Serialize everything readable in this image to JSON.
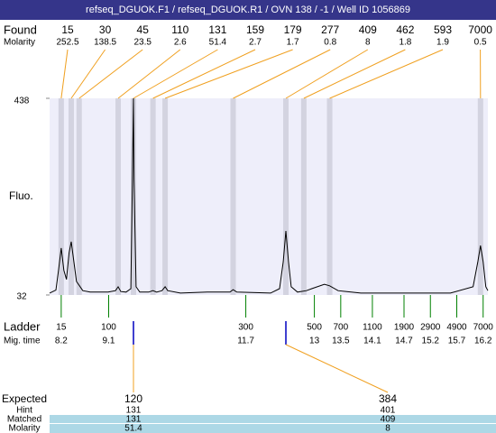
{
  "chart_data": {
    "type": "line",
    "title": "refseq_DGUOK.F1 / refseq_DGUOK.R1 / OVN 138 / -1 / Well ID 1056869",
    "y_label": "Fluo.",
    "xlim": [
      7.98,
      16.29
    ],
    "ylim": [
      32,
      438
    ],
    "yticks": [
      32,
      438
    ],
    "series": [
      {
        "color": "#000000",
        "x": [
          7.98,
          8.1,
          8.15,
          8.2,
          8.25,
          8.3,
          8.35,
          8.39,
          8.44,
          8.49,
          8.54,
          8.61,
          8.75,
          9.09,
          9.23,
          9.28,
          9.33,
          9.43,
          9.52,
          9.55,
          9.57,
          9.58,
          9.62,
          9.69,
          9.86,
          9.94,
          10.01,
          10.11,
          10.17,
          10.22,
          10.46,
          10.97,
          11.4,
          11.46,
          11.53,
          12.17,
          12.34,
          12.41,
          12.46,
          12.51,
          12.56,
          12.68,
          12.85,
          12.95,
          13.19,
          13.29,
          13.45,
          13.88,
          14.73,
          15.58,
          16.01,
          16.1,
          16.15,
          16.2,
          16.25,
          16.29
        ],
        "values": [
          36,
          42,
          83,
          129,
          83,
          64,
          119,
          142,
          101,
          60,
          52,
          41,
          38,
          38,
          41,
          49,
          39,
          38,
          45,
          268,
          438,
          268,
          49,
          38,
          38,
          41,
          38,
          41,
          49,
          41,
          36,
          38,
          38,
          43,
          38,
          36,
          45,
          101,
          164,
          101,
          49,
          38,
          41,
          45,
          54,
          51,
          41,
          36,
          36,
          36,
          49,
          101,
          134,
          101,
          49,
          41
        ]
      }
    ],
    "found": {
      "label": "Found",
      "molarity_label": "Molarity",
      "sizes": [
        15,
        30,
        45,
        110,
        131,
        159,
        179,
        277,
        409,
        462,
        593,
        7000
      ],
      "molarities": [
        252.5,
        138.5,
        23.5,
        2.6,
        51.4,
        2.7,
        1.7,
        0.8,
        8,
        1.8,
        1.9,
        0.5
      ],
      "times": [
        8.2,
        8.39,
        8.54,
        9.28,
        9.57,
        9.94,
        10.17,
        11.46,
        12.46,
        12.8,
        13.29,
        16.15
      ]
    },
    "ladder": {
      "label": "Ladder",
      "time_label": "Mig. time",
      "sizes": [
        15,
        100,
        300,
        500,
        700,
        1100,
        1900,
        2900,
        4900,
        7000
      ],
      "times": [
        8.2,
        9.1,
        11.7,
        13,
        13.5,
        14.1,
        14.7,
        15.2,
        15.7,
        16.2
      ]
    },
    "expected": {
      "label": "Expected",
      "hint_label": "Hint",
      "matched_label": "Matched",
      "molarity_label": "Molarity",
      "values": [
        120,
        384
      ],
      "hint": [
        131,
        401
      ],
      "matched": [
        131,
        409
      ],
      "molarity": [
        51.4,
        8
      ]
    }
  }
}
